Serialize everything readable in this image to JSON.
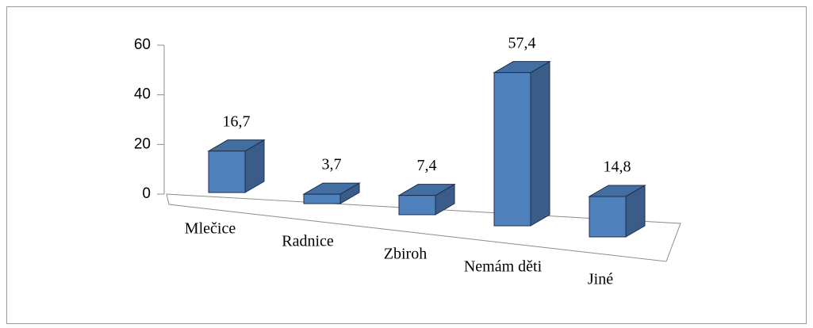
{
  "chart_data": {
    "type": "bar3d",
    "categories": [
      "Mlečice",
      "Radnice",
      "Zbiroh",
      "Nemám děti",
      "Jiné"
    ],
    "values": [
      16.7,
      3.7,
      7.4,
      57.4,
      14.8
    ],
    "value_labels": [
      "16,7",
      "3,7",
      "7,4",
      "57,4",
      "14,8"
    ],
    "color": "#4f81bd",
    "ylim": [
      0,
      60
    ],
    "yticks": [
      0,
      20,
      40,
      60
    ]
  }
}
